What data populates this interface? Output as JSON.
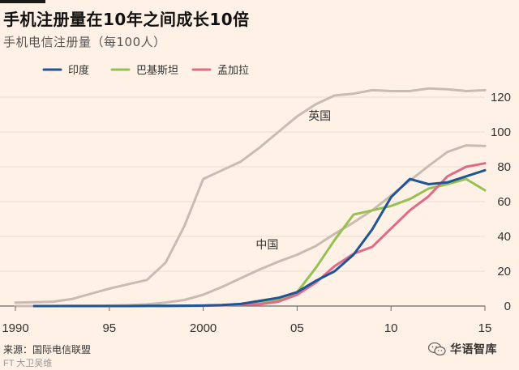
{
  "header": {
    "title": "手机注册量在10年之间成长10倍",
    "subtitle": "手机电信注册量（每100人）"
  },
  "footer": {
    "source": "来源：国际电信联盟",
    "watermark": "FT 大卫吴维",
    "brand": "华语智库"
  },
  "colors": {
    "background": "#fff1e5",
    "india": "#1f5596",
    "pakistan": "#97c052",
    "bangladesh": "#e06a8a",
    "other": "#c9bbb1",
    "grid": "#e7dbd0"
  },
  "chart_data": {
    "type": "line",
    "title": "手机注册量在10年之间成长10倍",
    "ylabel": "手机电信注册量（每100人）",
    "xlabel": "",
    "x": [
      1990,
      1991,
      1992,
      1993,
      1994,
      1995,
      1996,
      1997,
      1998,
      1999,
      2000,
      2001,
      2002,
      2003,
      2004,
      2005,
      2006,
      2007,
      2008,
      2009,
      2010,
      2011,
      2012,
      2013,
      2014,
      2015
    ],
    "xlim": [
      1990,
      2015
    ],
    "ylim": [
      0,
      125
    ],
    "xticks": [
      {
        "value": 1990,
        "label": "1990"
      },
      {
        "value": 1995,
        "label": "95"
      },
      {
        "value": 2000,
        "label": "2000"
      },
      {
        "value": 2005,
        "label": "05"
      },
      {
        "value": 2010,
        "label": "10"
      },
      {
        "value": 2015,
        "label": "15"
      }
    ],
    "yticks": [
      0,
      20,
      40,
      60,
      80,
      100,
      120
    ],
    "grid": true,
    "legend_position": "top-left",
    "series": [
      {
        "name": "英国",
        "key": "uk",
        "legend": false,
        "label": "英国",
        "values": [
          2,
          2.2,
          2.5,
          4,
          7,
          10,
          12.5,
          15,
          25,
          46,
          73,
          78,
          83,
          91,
          100,
          109,
          116,
          121,
          122,
          124,
          123.5,
          123.5,
          125,
          124.5,
          123.5,
          124
        ]
      },
      {
        "name": "中国",
        "key": "china",
        "legend": false,
        "label": "中国",
        "values": [
          0,
          0,
          0,
          0.2,
          0.2,
          0.3,
          0.5,
          1,
          2,
          3.5,
          6.5,
          11,
          16,
          21,
          25.5,
          29.5,
          34.5,
          41.5,
          48,
          55,
          63.5,
          72,
          80.5,
          88.5,
          92.3,
          92
        ]
      },
      {
        "name": "印度",
        "key": "india",
        "legend": true,
        "values": [
          null,
          0,
          0,
          0,
          0,
          0,
          0,
          0.1,
          0.1,
          0.2,
          0.3,
          0.6,
          1.2,
          3,
          4.7,
          8,
          14.5,
          20,
          29.5,
          44,
          62.5,
          73,
          70,
          71,
          74.5,
          78
        ]
      },
      {
        "name": "巴基斯坦",
        "key": "pakistan",
        "legend": true,
        "values": [
          null,
          0,
          0,
          0,
          0,
          0,
          0,
          0.1,
          0.2,
          0.2,
          0.2,
          0.5,
          0.9,
          2,
          3.2,
          8,
          22,
          38,
          52.5,
          55,
          57.5,
          61.5,
          67.5,
          70,
          73,
          66.5
        ]
      },
      {
        "name": "孟加拉",
        "key": "bangladesh",
        "legend": true,
        "values": [
          null,
          0,
          0,
          0,
          0,
          0,
          0,
          0,
          0,
          0.1,
          0.2,
          0.4,
          0.8,
          1,
          2.5,
          6.5,
          13.5,
          23,
          30,
          34,
          44.5,
          55,
          63,
          74.5,
          80,
          82
        ]
      }
    ]
  }
}
